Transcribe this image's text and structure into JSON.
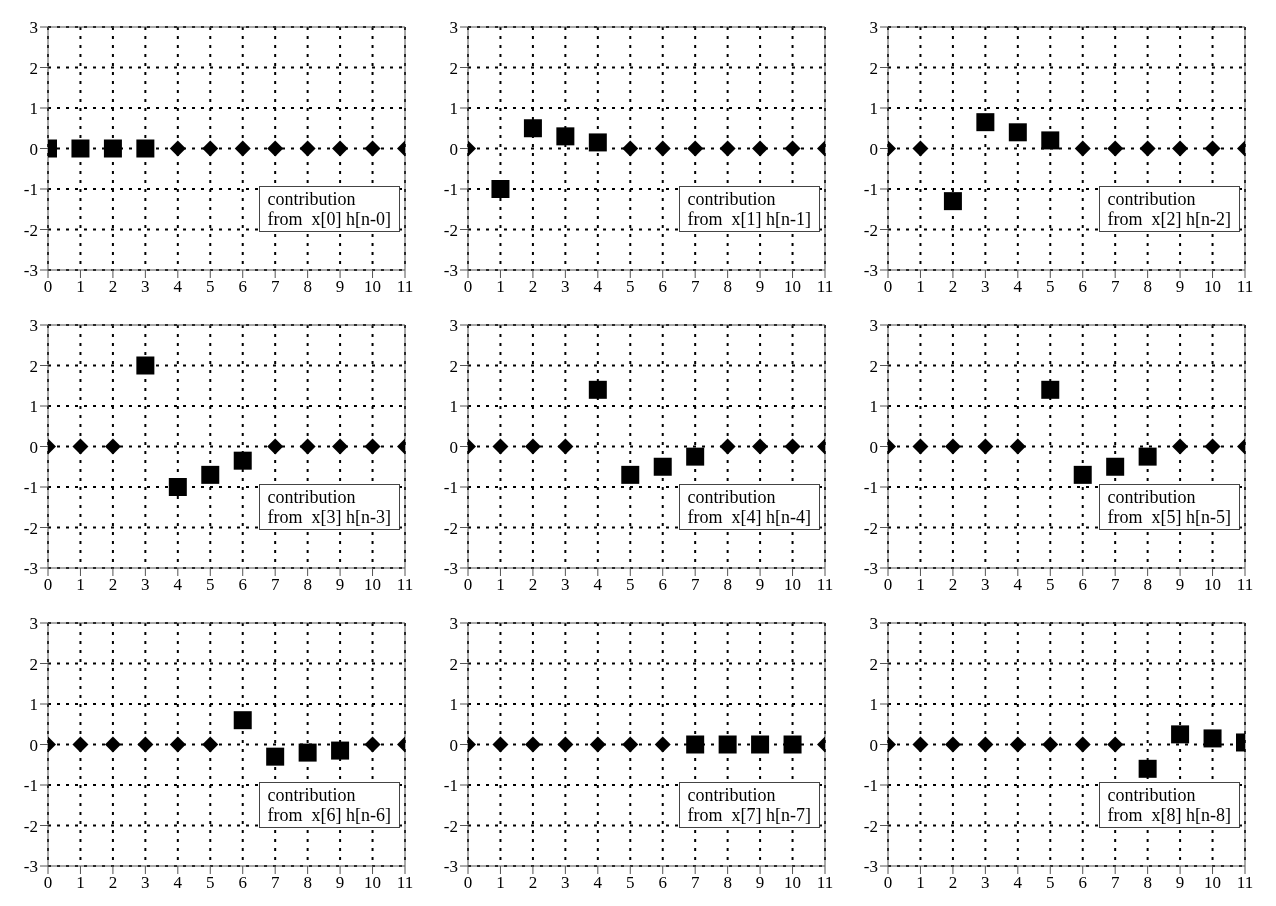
{
  "chart_data": [
    {
      "type": "scatter",
      "xlim": [
        0,
        11
      ],
      "ylim": [
        -3,
        3
      ],
      "xticks": [
        0,
        1,
        2,
        3,
        4,
        5,
        6,
        7,
        8,
        9,
        10,
        11
      ],
      "yticks": [
        -3,
        -2,
        -1,
        0,
        1,
        2,
        3
      ],
      "grid": true,
      "annotations": [
        "contribution",
        "from  x[0] h[n-0]"
      ],
      "series": [
        {
          "color": "#000000",
          "marker": "square",
          "x": [
            0,
            1,
            2,
            3
          ],
          "values": [
            0,
            0,
            0,
            0
          ]
        },
        {
          "color": "#000000",
          "marker": "diamond",
          "x": [
            4,
            5,
            6,
            7,
            8,
            9,
            10,
            11
          ],
          "values": [
            0,
            0,
            0,
            0,
            0,
            0,
            0,
            0
          ]
        }
      ]
    },
    {
      "type": "scatter",
      "xlim": [
        0,
        11
      ],
      "ylim": [
        -3,
        3
      ],
      "xticks": [
        0,
        1,
        2,
        3,
        4,
        5,
        6,
        7,
        8,
        9,
        10,
        11
      ],
      "yticks": [
        -3,
        -2,
        -1,
        0,
        1,
        2,
        3
      ],
      "grid": true,
      "annotations": [
        "contribution",
        "from  x[1] h[n-1]"
      ],
      "series": [
        {
          "color": "#000000",
          "marker": "square",
          "x": [
            1,
            2,
            3,
            4
          ],
          "values": [
            -1,
            0.5,
            0.3,
            0.15
          ]
        },
        {
          "color": "#000000",
          "marker": "diamond",
          "x": [
            0,
            5,
            6,
            7,
            8,
            9,
            10,
            11
          ],
          "values": [
            0,
            0,
            0,
            0,
            0,
            0,
            0,
            0
          ]
        }
      ]
    },
    {
      "type": "scatter",
      "xlim": [
        0,
        11
      ],
      "ylim": [
        -3,
        3
      ],
      "xticks": [
        0,
        1,
        2,
        3,
        4,
        5,
        6,
        7,
        8,
        9,
        10,
        11
      ],
      "yticks": [
        -3,
        -2,
        -1,
        0,
        1,
        2,
        3
      ],
      "grid": true,
      "annotations": [
        "contribution",
        "from  x[2] h[n-2]"
      ],
      "series": [
        {
          "color": "#000000",
          "marker": "square",
          "x": [
            2,
            3,
            4,
            5
          ],
          "values": [
            -1.3,
            0.65,
            0.4,
            0.2
          ]
        },
        {
          "color": "#000000",
          "marker": "diamond",
          "x": [
            0,
            1,
            6,
            7,
            8,
            9,
            10,
            11
          ],
          "values": [
            0,
            0,
            0,
            0,
            0,
            0,
            0,
            0
          ]
        }
      ]
    },
    {
      "type": "scatter",
      "xlim": [
        0,
        11
      ],
      "ylim": [
        -3,
        3
      ],
      "xticks": [
        0,
        1,
        2,
        3,
        4,
        5,
        6,
        7,
        8,
        9,
        10,
        11
      ],
      "yticks": [
        -3,
        -2,
        -1,
        0,
        1,
        2,
        3
      ],
      "grid": true,
      "annotations": [
        "contribution",
        "from  x[3] h[n-3]"
      ],
      "series": [
        {
          "color": "#000000",
          "marker": "square",
          "x": [
            3,
            4,
            5,
            6
          ],
          "values": [
            2,
            -1,
            -0.7,
            -0.35
          ]
        },
        {
          "color": "#000000",
          "marker": "diamond",
          "x": [
            0,
            1,
            2,
            7,
            8,
            9,
            10,
            11
          ],
          "values": [
            0,
            0,
            0,
            0,
            0,
            0,
            0,
            0
          ]
        }
      ]
    },
    {
      "type": "scatter",
      "xlim": [
        0,
        11
      ],
      "ylim": [
        -3,
        3
      ],
      "xticks": [
        0,
        1,
        2,
        3,
        4,
        5,
        6,
        7,
        8,
        9,
        10,
        11
      ],
      "yticks": [
        -3,
        -2,
        -1,
        0,
        1,
        2,
        3
      ],
      "grid": true,
      "annotations": [
        "contribution",
        "from  x[4] h[n-4]"
      ],
      "series": [
        {
          "color": "#000000",
          "marker": "square",
          "x": [
            4,
            5,
            6,
            7
          ],
          "values": [
            1.4,
            -0.7,
            -0.5,
            -0.25
          ]
        },
        {
          "color": "#000000",
          "marker": "diamond",
          "x": [
            0,
            1,
            2,
            3,
            8,
            9,
            10,
            11
          ],
          "values": [
            0,
            0,
            0,
            0,
            0,
            0,
            0,
            0
          ]
        }
      ]
    },
    {
      "type": "scatter",
      "xlim": [
        0,
        11
      ],
      "ylim": [
        -3,
        3
      ],
      "xticks": [
        0,
        1,
        2,
        3,
        4,
        5,
        6,
        7,
        8,
        9,
        10,
        11
      ],
      "yticks": [
        -3,
        -2,
        -1,
        0,
        1,
        2,
        3
      ],
      "grid": true,
      "annotations": [
        "contribution",
        "from  x[5] h[n-5]"
      ],
      "series": [
        {
          "color": "#000000",
          "marker": "square",
          "x": [
            5,
            6,
            7,
            8
          ],
          "values": [
            1.4,
            -0.7,
            -0.5,
            -0.25
          ]
        },
        {
          "color": "#000000",
          "marker": "diamond",
          "x": [
            0,
            1,
            2,
            3,
            4,
            9,
            10,
            11
          ],
          "values": [
            0,
            0,
            0,
            0,
            0,
            0,
            0,
            0
          ]
        }
      ]
    },
    {
      "type": "scatter",
      "xlim": [
        0,
        11
      ],
      "ylim": [
        -3,
        3
      ],
      "xticks": [
        0,
        1,
        2,
        3,
        4,
        5,
        6,
        7,
        8,
        9,
        10,
        11
      ],
      "yticks": [
        -3,
        -2,
        -1,
        0,
        1,
        2,
        3
      ],
      "grid": true,
      "annotations": [
        "contribution",
        "from  x[6] h[n-6]"
      ],
      "series": [
        {
          "color": "#000000",
          "marker": "square",
          "x": [
            6,
            7,
            8,
            9
          ],
          "values": [
            0.6,
            -0.3,
            -0.2,
            -0.15
          ]
        },
        {
          "color": "#000000",
          "marker": "diamond",
          "x": [
            0,
            1,
            2,
            3,
            4,
            5,
            10,
            11
          ],
          "values": [
            0,
            0,
            0,
            0,
            0,
            0,
            0,
            0
          ]
        }
      ]
    },
    {
      "type": "scatter",
      "xlim": [
        0,
        11
      ],
      "ylim": [
        -3,
        3
      ],
      "xticks": [
        0,
        1,
        2,
        3,
        4,
        5,
        6,
        7,
        8,
        9,
        10,
        11
      ],
      "yticks": [
        -3,
        -2,
        -1,
        0,
        1,
        2,
        3
      ],
      "grid": true,
      "annotations": [
        "contribution",
        "from  x[7] h[n-7]"
      ],
      "series": [
        {
          "color": "#000000",
          "marker": "square",
          "x": [
            7,
            8,
            9,
            10
          ],
          "values": [
            0,
            0,
            0,
            0
          ]
        },
        {
          "color": "#000000",
          "marker": "diamond",
          "x": [
            0,
            1,
            2,
            3,
            4,
            5,
            6,
            11
          ],
          "values": [
            0,
            0,
            0,
            0,
            0,
            0,
            0,
            0
          ]
        }
      ]
    },
    {
      "type": "scatter",
      "xlim": [
        0,
        11
      ],
      "ylim": [
        -3,
        3
      ],
      "xticks": [
        0,
        1,
        2,
        3,
        4,
        5,
        6,
        7,
        8,
        9,
        10,
        11
      ],
      "yticks": [
        -3,
        -2,
        -1,
        0,
        1,
        2,
        3
      ],
      "grid": true,
      "annotations": [
        "contribution",
        "from  x[8] h[n-8]"
      ],
      "series": [
        {
          "color": "#000000",
          "marker": "square",
          "x": [
            8,
            9,
            10,
            11
          ],
          "values": [
            -0.6,
            0.25,
            0.15,
            0.05
          ]
        },
        {
          "color": "#000000",
          "marker": "diamond",
          "x": [
            0,
            1,
            2,
            3,
            4,
            5,
            6,
            7
          ],
          "values": [
            0,
            0,
            0,
            0,
            0,
            0,
            0,
            0
          ]
        }
      ]
    }
  ]
}
